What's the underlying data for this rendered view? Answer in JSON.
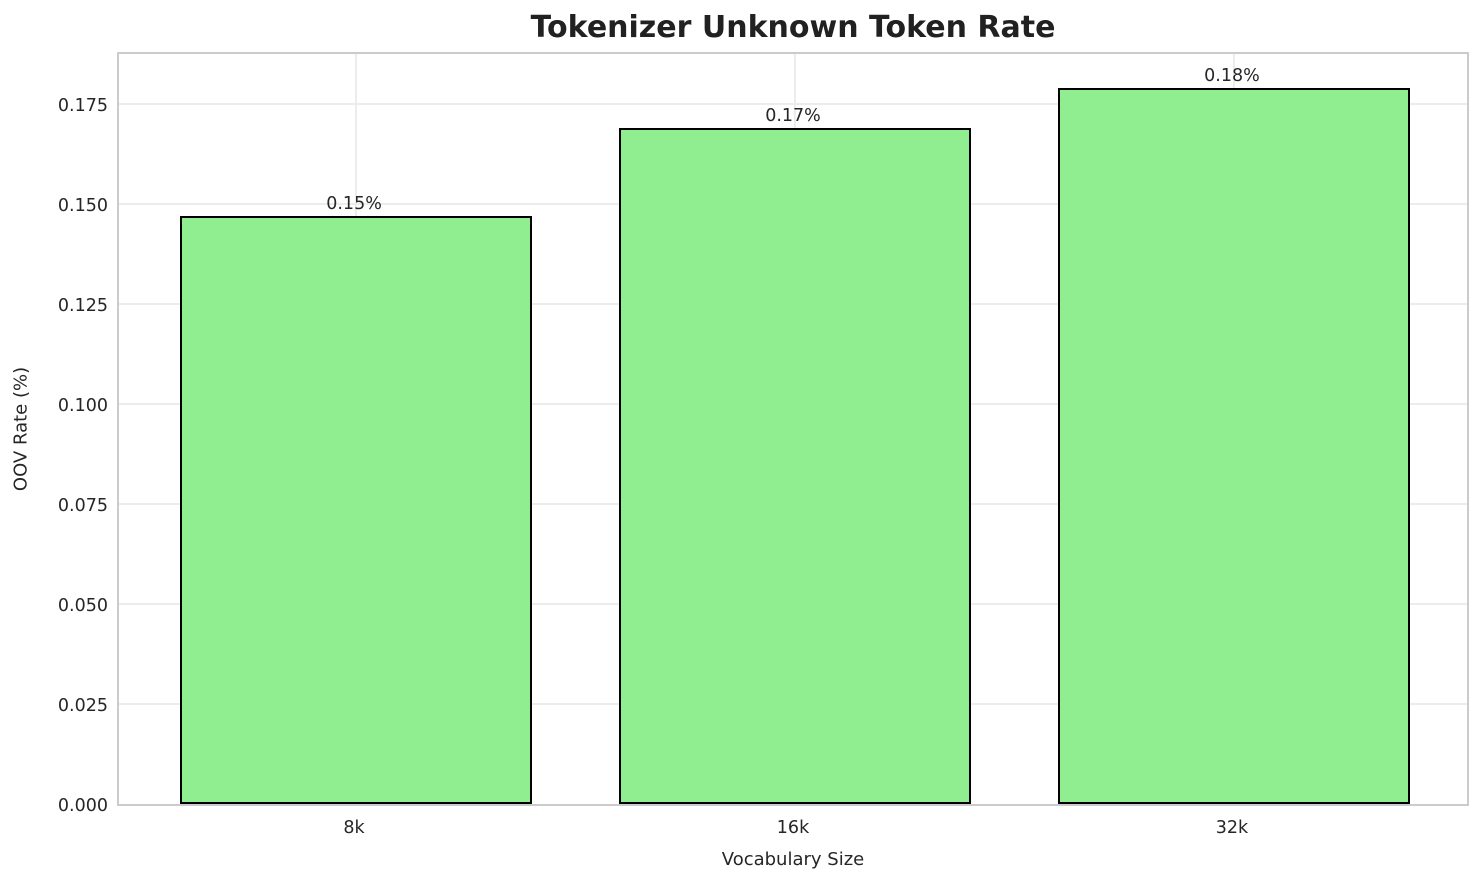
{
  "chart_data": {
    "type": "bar",
    "title": "Tokenizer Unknown Token Rate",
    "xlabel": "Vocabulary Size",
    "ylabel": "OOV Rate (%)",
    "categories": [
      "8k",
      "16k",
      "32k"
    ],
    "values": [
      0.147,
      0.169,
      0.179
    ],
    "bar_labels": [
      "0.15%",
      "0.17%",
      "0.18%"
    ],
    "ylim": [
      0,
      0.1885
    ],
    "yticks": [
      0.0,
      0.025,
      0.05,
      0.075,
      0.1,
      0.125,
      0.15,
      0.175
    ],
    "ytick_labels": [
      "0.000",
      "0.025",
      "0.050",
      "0.075",
      "0.100",
      "0.125",
      "0.150",
      "0.175"
    ],
    "bar_color": "#90EE90",
    "bar_edge_color": "#000000",
    "grid": true,
    "grid_color": "#ececec",
    "spine_color": "#cbcbcb",
    "text_color": "#262626",
    "legend": null,
    "legend_position": "none"
  }
}
